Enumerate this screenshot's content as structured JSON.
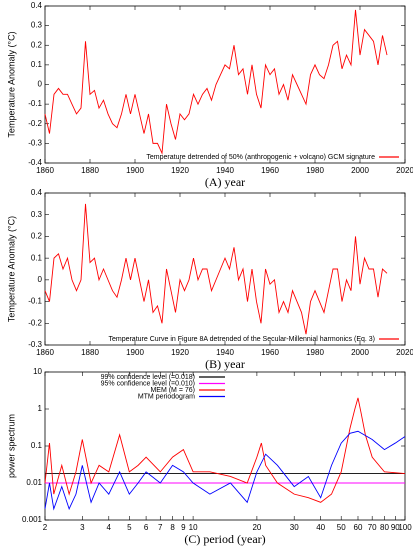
{
  "chart_data": [
    {
      "type": "line",
      "xlabel": "(A) year",
      "ylabel": "Temperature Anomaly (°C)",
      "xlim": [
        1860,
        2020
      ],
      "xticks": [
        1860,
        1880,
        1900,
        1920,
        1940,
        1960,
        1980,
        2000,
        2020
      ],
      "ylim": [
        -0.4,
        0.4
      ],
      "yticks": [
        -0.4,
        -0.3,
        -0.2,
        -0.1,
        0,
        0.1,
        0.2,
        0.3,
        0.4
      ],
      "legend": "lower right",
      "x": [
        1860,
        1862,
        1864,
        1866,
        1868,
        1870,
        1872,
        1874,
        1876,
        1878,
        1880,
        1882,
        1884,
        1886,
        1888,
        1890,
        1892,
        1894,
        1896,
        1898,
        1900,
        1902,
        1904,
        1906,
        1908,
        1910,
        1912,
        1914,
        1916,
        1918,
        1920,
        1922,
        1924,
        1926,
        1928,
        1930,
        1932,
        1934,
        1936,
        1938,
        1940,
        1942,
        1944,
        1946,
        1948,
        1950,
        1952,
        1954,
        1956,
        1958,
        1960,
        1962,
        1964,
        1966,
        1968,
        1970,
        1972,
        1974,
        1976,
        1978,
        1980,
        1982,
        1984,
        1986,
        1988,
        1990,
        1992,
        1994,
        1996,
        1998,
        2000,
        2002,
        2004,
        2006,
        2008,
        2010,
        2012
      ],
      "series": [
        {
          "name": "Temperature detrended of 50% (anthropogenic + volcano) GCM signature",
          "color": "#ff0000",
          "values": [
            -0.15,
            -0.25,
            -0.05,
            -0.02,
            -0.05,
            -0.05,
            -0.1,
            -0.15,
            -0.12,
            0.22,
            -0.05,
            -0.03,
            -0.12,
            -0.08,
            -0.15,
            -0.2,
            -0.22,
            -0.15,
            -0.05,
            -0.15,
            -0.05,
            -0.15,
            -0.25,
            -0.15,
            -0.3,
            -0.3,
            -0.35,
            -0.1,
            -0.2,
            -0.28,
            -0.15,
            -0.18,
            -0.15,
            -0.05,
            -0.1,
            -0.05,
            -0.02,
            -0.08,
            0,
            0.05,
            0.1,
            0.08,
            0.2,
            0.05,
            0.08,
            -0.05,
            0.1,
            -0.05,
            -0.12,
            0.1,
            0.05,
            0.08,
            -0.05,
            0,
            -0.08,
            0.05,
            0,
            -0.05,
            -0.1,
            0.05,
            0.1,
            0.05,
            0.03,
            0.1,
            0.2,
            0.22,
            0.08,
            0.15,
            0.1,
            0.38,
            0.15,
            0.28,
            0.25,
            0.22,
            0.1,
            0.25,
            0.15
          ]
        }
      ]
    },
    {
      "type": "line",
      "xlabel": "(B) year",
      "ylabel": "Temperature Anomaly (°C)",
      "xlim": [
        1860,
        2020
      ],
      "xticks": [
        1860,
        1880,
        1900,
        1920,
        1940,
        1960,
        1980,
        2000,
        2020
      ],
      "ylim": [
        -0.3,
        0.4
      ],
      "yticks": [
        -0.3,
        -0.2,
        -0.1,
        0,
        0.1,
        0.2,
        0.3,
        0.4
      ],
      "legend": "lower right",
      "x": [
        1860,
        1862,
        1864,
        1866,
        1868,
        1870,
        1872,
        1874,
        1876,
        1878,
        1880,
        1882,
        1884,
        1886,
        1888,
        1890,
        1892,
        1894,
        1896,
        1898,
        1900,
        1902,
        1904,
        1906,
        1908,
        1910,
        1912,
        1914,
        1916,
        1918,
        1920,
        1922,
        1924,
        1926,
        1928,
        1930,
        1932,
        1934,
        1936,
        1938,
        1940,
        1942,
        1944,
        1946,
        1948,
        1950,
        1952,
        1954,
        1956,
        1958,
        1960,
        1962,
        1964,
        1966,
        1968,
        1970,
        1972,
        1974,
        1976,
        1978,
        1980,
        1982,
        1984,
        1986,
        1988,
        1990,
        1992,
        1994,
        1996,
        1998,
        2000,
        2002,
        2004,
        2006,
        2008,
        2010,
        2012
      ],
      "series": [
        {
          "name": "Temperature Curve in Figure 8A detrended of the Secular-Millennial harmonics (Eq. 3)",
          "color": "#ff0000",
          "values": [
            -0.05,
            -0.1,
            0.1,
            0.12,
            0.05,
            0.1,
            0,
            -0.05,
            0,
            0.35,
            0.08,
            0.1,
            0,
            0.05,
            0,
            -0.05,
            -0.08,
            0,
            0.1,
            0,
            0.1,
            0,
            -0.1,
            0,
            -0.15,
            -0.12,
            -0.2,
            0.05,
            -0.05,
            -0.15,
            0,
            -0.05,
            0,
            0.1,
            0,
            0.05,
            0.05,
            -0.05,
            0,
            0.05,
            0.1,
            0.05,
            0.15,
            0,
            0.05,
            -0.1,
            0.05,
            -0.1,
            -0.2,
            0.05,
            -0.02,
            0,
            -0.15,
            -0.1,
            -0.15,
            -0.05,
            -0.1,
            -0.15,
            -0.25,
            -0.1,
            -0.05,
            -0.1,
            -0.15,
            -0.05,
            0.05,
            0.05,
            -0.1,
            0,
            -0.05,
            0.2,
            -0.02,
            0.1,
            0.05,
            0.05,
            -0.08,
            0.05,
            0.03
          ]
        }
      ]
    },
    {
      "type": "line",
      "xlabel": "(C) period (year)",
      "ylabel": "power spectrum",
      "xlog": true,
      "ylog": true,
      "xlim": [
        2,
        100
      ],
      "xticks": [
        2,
        3,
        4,
        5,
        6,
        7,
        8,
        9,
        10,
        20,
        30,
        40,
        50,
        60,
        70,
        80,
        90,
        100
      ],
      "ylim": [
        0.001,
        10
      ],
      "yticks": [
        0.001,
        0.01,
        0.1,
        1,
        10
      ],
      "legend": "upper left",
      "series": [
        {
          "name": "99% confidence level (=0.018)",
          "color": "#000000",
          "x": [
            2,
            100
          ],
          "values": [
            0.018,
            0.018
          ]
        },
        {
          "name": "95% confidence level (=0.010)",
          "color": "#ff00ff",
          "x": [
            2,
            100
          ],
          "values": [
            0.01,
            0.01
          ]
        },
        {
          "name": "MEM (M = 76)",
          "color": "#ff0000",
          "x": [
            2,
            2.1,
            2.2,
            2.4,
            2.6,
            2.8,
            3,
            3.3,
            3.6,
            4,
            4.5,
            5,
            5.5,
            6,
            7,
            8,
            9,
            10,
            12,
            15,
            18,
            20,
            21,
            22,
            25,
            30,
            35,
            40,
            45,
            50,
            55,
            58,
            60,
            62,
            65,
            70,
            80,
            100
          ],
          "values": [
            0.01,
            0.12,
            0.005,
            0.03,
            0.005,
            0.02,
            0.15,
            0.01,
            0.03,
            0.02,
            0.2,
            0.02,
            0.03,
            0.05,
            0.02,
            0.05,
            0.08,
            0.02,
            0.02,
            0.015,
            0.01,
            0.05,
            0.12,
            0.03,
            0.01,
            0.005,
            0.004,
            0.003,
            0.005,
            0.02,
            0.3,
            1.0,
            2.0,
            0.8,
            0.2,
            0.05,
            0.02,
            0.018
          ]
        },
        {
          "name": "MTM periodogram",
          "color": "#0000ff",
          "x": [
            2,
            2.1,
            2.2,
            2.4,
            2.6,
            2.8,
            3,
            3.3,
            3.6,
            4,
            4.5,
            5,
            5.5,
            6,
            7,
            8,
            9,
            10,
            12,
            15,
            18,
            20,
            22,
            25,
            30,
            35,
            40,
            45,
            50,
            55,
            60,
            70,
            80,
            90,
            100
          ],
          "values": [
            0.002,
            0.01,
            0.002,
            0.008,
            0.002,
            0.005,
            0.03,
            0.003,
            0.01,
            0.005,
            0.02,
            0.005,
            0.01,
            0.02,
            0.01,
            0.03,
            0.02,
            0.01,
            0.005,
            0.01,
            0.003,
            0.02,
            0.06,
            0.03,
            0.008,
            0.015,
            0.004,
            0.03,
            0.12,
            0.22,
            0.25,
            0.15,
            0.08,
            0.12,
            0.18
          ]
        }
      ]
    }
  ]
}
